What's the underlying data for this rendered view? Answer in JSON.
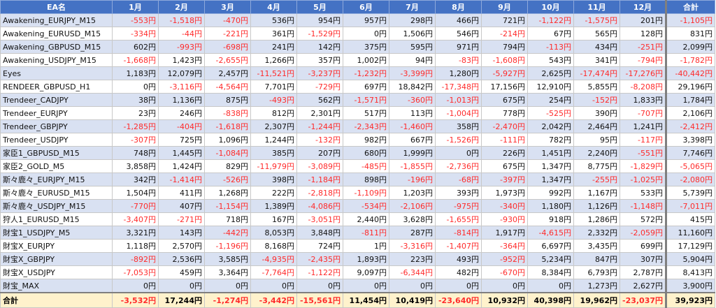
{
  "header": {
    "name": "EA名",
    "months": [
      "1月",
      "2月",
      "3月",
      "4月",
      "5月",
      "6月",
      "7月",
      "8月",
      "9月",
      "10月",
      "11月",
      "12月"
    ],
    "total": "合計"
  },
  "rows": [
    {
      "name": "Awakening_EURJPY_M15",
      "values": [
        "-553円",
        "-1,518円",
        "-470円",
        "536円",
        "954円",
        "957円",
        "298円",
        "466円",
        "721円",
        "-1,122円",
        "-1,575円",
        "201円"
      ],
      "total": "-1,105円"
    },
    {
      "name": "Awakening_EURUSD_M15",
      "values": [
        "-334円",
        "-44円",
        "-221円",
        "361円",
        "-1,529円",
        "0円",
        "1,506円",
        "546円",
        "-214円",
        "67円",
        "565円",
        "128円"
      ],
      "total": "831円"
    },
    {
      "name": "Awakening_GBPUSD_M15",
      "values": [
        "602円",
        "-993円",
        "-698円",
        "241円",
        "142円",
        "375円",
        "595円",
        "971円",
        "794円",
        "-113円",
        "434円",
        "-251円"
      ],
      "total": "2,099円"
    },
    {
      "name": "Awakening_USDJPY_M15",
      "values": [
        "-1,668円",
        "1,423円",
        "-2,655円",
        "1,266円",
        "357円",
        "1,002円",
        "94円",
        "-83円",
        "-1,608円",
        "543円",
        "341円",
        "-794円"
      ],
      "total": "-1,782円"
    },
    {
      "name": "Eyes",
      "values": [
        "1,183円",
        "12,079円",
        "2,457円",
        "-11,521円",
        "-3,237円",
        "-1,232円",
        "-3,399円",
        "1,280円",
        "-5,927円",
        "2,625円",
        "-17,474円",
        "-17,276円"
      ],
      "total": "-40,442円"
    },
    {
      "name": "RENDEER_GBPUSD_H1",
      "values": [
        "0円",
        "-3,116円",
        "-4,564円",
        "7,701円",
        "-729円",
        "697円",
        "18,842円",
        "-17,348円",
        "17,156円",
        "12,910円",
        "5,855円",
        "-8,208円"
      ],
      "total": "29,196円"
    },
    {
      "name": "Trendeer_CADJPY",
      "values": [
        "38円",
        "1,136円",
        "875円",
        "-493円",
        "562円",
        "-1,571円",
        "-360円",
        "-1,013円",
        "675円",
        "254円",
        "-152円",
        "1,833円"
      ],
      "total": "1,784円"
    },
    {
      "name": "Trendeer_EURJPY",
      "values": [
        "23円",
        "246円",
        "-838円",
        "812円",
        "2,301円",
        "517円",
        "113円",
        "-1,004円",
        "778円",
        "-525円",
        "390円",
        "-707円"
      ],
      "total": "2,106円"
    },
    {
      "name": "Trendeer_GBPJPY",
      "values": [
        "-1,285円",
        "-404円",
        "-1,618円",
        "2,307円",
        "-1,244円",
        "-2,343円",
        "-1,460円",
        "358円",
        "-2,470円",
        "2,042円",
        "2,464円",
        "1,241円"
      ],
      "total": "-2,412円"
    },
    {
      "name": "Trendeer_USDJPY",
      "values": [
        "-307円",
        "725円",
        "1,096円",
        "1,244円",
        "-132円",
        "982円",
        "667円",
        "-1,526円",
        "-111円",
        "782円",
        "95円",
        "-117円"
      ],
      "total": "3,398円"
    },
    {
      "name": "家臣1_GBPUSD_M15",
      "values": [
        "748円",
        "1,445円",
        "-1,084円",
        "385円",
        "207円",
        "680円",
        "1,999円",
        "0円",
        "226円",
        "1,451円",
        "2,240円",
        "-551円"
      ],
      "total": "7,746円"
    },
    {
      "name": "家臣2_GOLD_M5",
      "values": [
        "3,858円",
        "1,424円",
        "829円",
        "-11,979円",
        "-3,089円",
        "-485円",
        "-1,855円",
        "-2,736円",
        "675円",
        "1,347円",
        "8,775円",
        "-1,829円"
      ],
      "total": "-5,065円"
    },
    {
      "name": "斯々鹿々_EURJPY_M15",
      "values": [
        "342円",
        "-1,414円",
        "-526円",
        "398円",
        "-1,184円",
        "898円",
        "-196円",
        "-68円",
        "-397円",
        "1,347円",
        "-255円",
        "-1,025円"
      ],
      "total": "-2,080円"
    },
    {
      "name": "斯々鹿々_EURUSD_M15",
      "values": [
        "1,504円",
        "411円",
        "1,268円",
        "222円",
        "-2,818円",
        "-1,109円",
        "1,203円",
        "393円",
        "1,973円",
        "992円",
        "1,167円",
        "533円"
      ],
      "total": "5,739円"
    },
    {
      "name": "斯々鹿々_USDJPY_M15",
      "values": [
        "-770円",
        "407円",
        "-1,154円",
        "1,389円",
        "-4,086円",
        "-534円",
        "-2,106円",
        "-975円",
        "-340円",
        "1,180円",
        "1,126円",
        "-1,148円"
      ],
      "total": "-7,011円"
    },
    {
      "name": "狩人1_EURUSD_M15",
      "values": [
        "-3,407円",
        "-271円",
        "718円",
        "167円",
        "-3,051円",
        "2,440円",
        "3,628円",
        "-1,655円",
        "-930円",
        "918円",
        "1,286円",
        "572円"
      ],
      "total": "415円"
    },
    {
      "name": "財宝1_USDJPY_M5",
      "values": [
        "3,321円",
        "143円",
        "-442円",
        "8,053円",
        "3,848円",
        "-811円",
        "287円",
        "-814円",
        "1,917円",
        "-4,615円",
        "2,332円",
        "-2,059円"
      ],
      "total": "11,160円"
    },
    {
      "name": "財宝X_EURJPY",
      "values": [
        "1,118円",
        "2,570円",
        "-1,196円",
        "8,168円",
        "724円",
        "1円",
        "-3,316円",
        "-1,407円",
        "-364円",
        "6,697円",
        "3,435円",
        "699円"
      ],
      "total": "17,129円"
    },
    {
      "name": "財宝X_GBPJPY",
      "values": [
        "-892円",
        "2,536円",
        "3,585円",
        "-4,935円",
        "-2,435円",
        "1,893円",
        "223円",
        "493円",
        "-952円",
        "5,234円",
        "847円",
        "307円"
      ],
      "total": "5,904円"
    },
    {
      "name": "財宝X_USDJPY",
      "values": [
        "-7,053円",
        "459円",
        "3,364円",
        "-7,764円",
        "-1,122円",
        "9,097円",
        "-6,344円",
        "482円",
        "-670円",
        "8,384円",
        "6,793円",
        "2,787円"
      ],
      "total": "8,413円"
    },
    {
      "name": "財宝_MAX",
      "values": [
        "0円",
        "0円",
        "0円",
        "0円",
        "0円",
        "0円",
        "0円",
        "0円",
        "0円",
        "0円",
        "1,273円",
        "2,627円"
      ],
      "total": "3,900円"
    }
  ],
  "footer": {
    "label": "合計",
    "values": [
      "-3,532円",
      "17,244円",
      "-1,274円",
      "-3,442円",
      "-15,561円",
      "11,454円",
      "10,419円",
      "-23,640円",
      "10,932円",
      "40,398円",
      "19,962円",
      "-23,037円"
    ],
    "total": "39,923円"
  },
  "colors": {
    "header": "#4472c4",
    "band": "#d9e1f2",
    "footer": "#fff2cc",
    "negative": "#ff2b2b"
  }
}
